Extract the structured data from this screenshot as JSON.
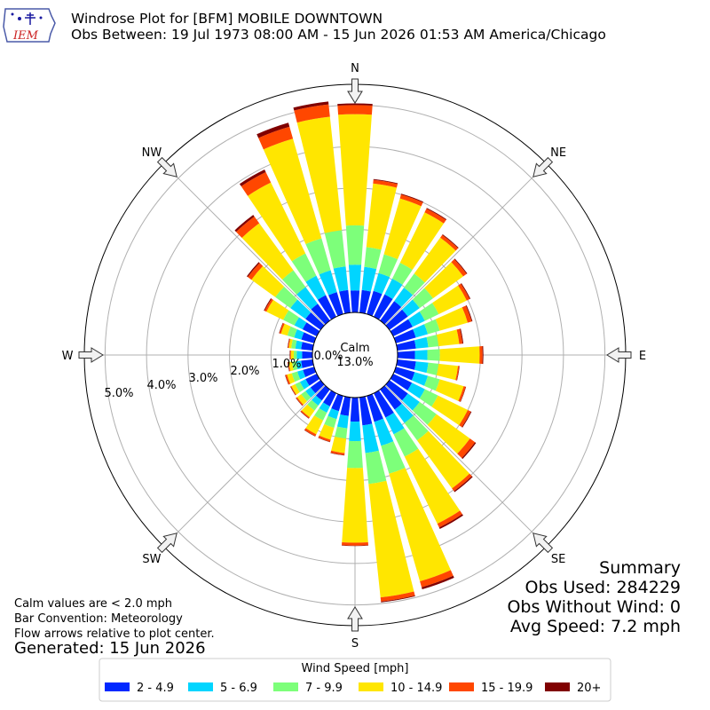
{
  "header": {
    "title": "Windrose Plot for [BFM] MOBILE DOWNTOWN",
    "subtitle": "Obs Between: 19 Jul 1973 08:00 AM - 15 Jun 2026 01:53 AM America/Chicago",
    "logo_text": "IEM"
  },
  "summary": {
    "heading": "Summary",
    "obs_used": "Obs Used: 284229",
    "obs_without_wind": "Obs Without Wind: 0",
    "avg_speed": "Avg Speed: 7.2 mph"
  },
  "notes": {
    "calm_note": "Calm values are < 2.0 mph",
    "bar_convention": "Bar Convention: Meteorology",
    "flow_arrows": "Flow arrows relative to plot center.",
    "generated": "Generated: 15 Jun 2026"
  },
  "colors": {
    "bins": [
      "#0028ff",
      "#00d5ff",
      "#7dff7a",
      "#ffe600",
      "#ff4700",
      "#800000"
    ]
  },
  "chart_data": {
    "type": "windrose",
    "calm_label": "Calm",
    "calm_value": "13.0%",
    "compass_labels": [
      "N",
      "NE",
      "E",
      "SE",
      "S",
      "SW",
      "W",
      "NW"
    ],
    "radial_ticks": [
      "0.0%",
      "1.0%",
      "2.0%",
      "3.0%",
      "4.0%",
      "5.0%"
    ],
    "radial_range": [
      0,
      5.5
    ],
    "legend": {
      "title": "Wind Speed [mph]",
      "placement": "bottom-center",
      "bins": [
        "2 - 4.9",
        "5 - 6.9",
        "7 - 9.9",
        "10 - 14.9",
        "15 - 19.9",
        "20+"
      ]
    },
    "directions_deg": [
      0,
      10,
      20,
      30,
      40,
      50,
      60,
      70,
      80,
      90,
      100,
      110,
      120,
      130,
      140,
      150,
      160,
      170,
      180,
      190,
      200,
      210,
      220,
      230,
      240,
      250,
      260,
      270,
      280,
      290,
      300,
      310,
      320,
      330,
      340,
      350
    ],
    "cumulative_percent": [
      [
        0.53,
        1.15,
        2.1,
        4.78,
        5.0,
        5.04
      ],
      [
        0.55,
        1.11,
        1.59,
        3.13,
        3.22,
        3.24
      ],
      [
        0.58,
        1.03,
        1.5,
        2.9,
        3.0,
        3.02
      ],
      [
        0.6,
        1.02,
        1.45,
        2.8,
        2.9,
        2.92
      ],
      [
        0.58,
        0.98,
        1.4,
        2.47,
        2.55,
        2.57
      ],
      [
        0.55,
        0.9,
        1.3,
        2.2,
        2.3,
        2.32
      ],
      [
        0.52,
        0.85,
        1.22,
        1.97,
        2.05,
        2.07
      ],
      [
        0.5,
        0.8,
        1.1,
        1.8,
        1.9,
        1.92
      ],
      [
        0.45,
        0.75,
        1.0,
        1.5,
        1.58,
        1.6
      ],
      [
        0.42,
        0.72,
        1.02,
        1.98,
        2.05,
        2.07
      ],
      [
        0.45,
        0.75,
        1.0,
        1.47,
        1.5,
        1.51
      ],
      [
        0.47,
        0.8,
        1.1,
        1.7,
        1.75,
        1.76
      ],
      [
        0.5,
        0.85,
        1.2,
        2.0,
        2.08,
        2.1
      ],
      [
        0.55,
        0.9,
        1.4,
        2.4,
        2.55,
        2.58
      ],
      [
        0.6,
        1.0,
        1.52,
        2.95,
        3.03,
        3.06
      ],
      [
        0.65,
        1.1,
        1.7,
        3.5,
        3.6,
        3.64
      ],
      [
        0.65,
        1.25,
        1.95,
        4.65,
        4.8,
        4.85
      ],
      [
        0.68,
        1.35,
        2.1,
        4.85,
        4.95,
        4.97
      ],
      [
        0.58,
        1.05,
        1.7,
        3.5,
        3.57,
        3.58
      ],
      [
        0.45,
        0.75,
        1.0,
        1.35,
        1.4,
        1.41
      ],
      [
        0.38,
        0.58,
        0.8,
        1.1,
        1.15,
        1.16
      ],
      [
        0.35,
        0.52,
        0.73,
        1.1,
        1.15,
        1.16
      ],
      [
        0.33,
        0.48,
        0.63,
        0.83,
        0.86,
        0.87
      ],
      [
        0.3,
        0.45,
        0.58,
        0.7,
        0.73,
        0.74
      ],
      [
        0.3,
        0.45,
        0.58,
        0.68,
        0.7,
        0.71
      ],
      [
        0.28,
        0.42,
        0.56,
        0.68,
        0.72,
        0.73
      ],
      [
        0.28,
        0.4,
        0.5,
        0.58,
        0.6,
        0.61
      ],
      [
        0.25,
        0.38,
        0.45,
        0.52,
        0.54,
        0.55
      ],
      [
        0.28,
        0.42,
        0.52,
        0.58,
        0.6,
        0.61
      ],
      [
        0.32,
        0.5,
        0.67,
        0.83,
        0.87,
        0.88
      ],
      [
        0.38,
        0.6,
        0.9,
        1.35,
        1.4,
        1.42
      ],
      [
        0.45,
        0.9,
        1.35,
        2.06,
        2.17,
        2.2
      ],
      [
        0.5,
        1.0,
        1.5,
        2.9,
        3.1,
        3.15
      ],
      [
        0.58,
        1.1,
        1.7,
        3.6,
        3.88,
        3.95
      ],
      [
        0.55,
        1.1,
        1.9,
        4.4,
        4.7,
        4.8
      ],
      [
        0.55,
        1.12,
        2.0,
        4.75,
        5.05,
        5.12
      ]
    ]
  }
}
